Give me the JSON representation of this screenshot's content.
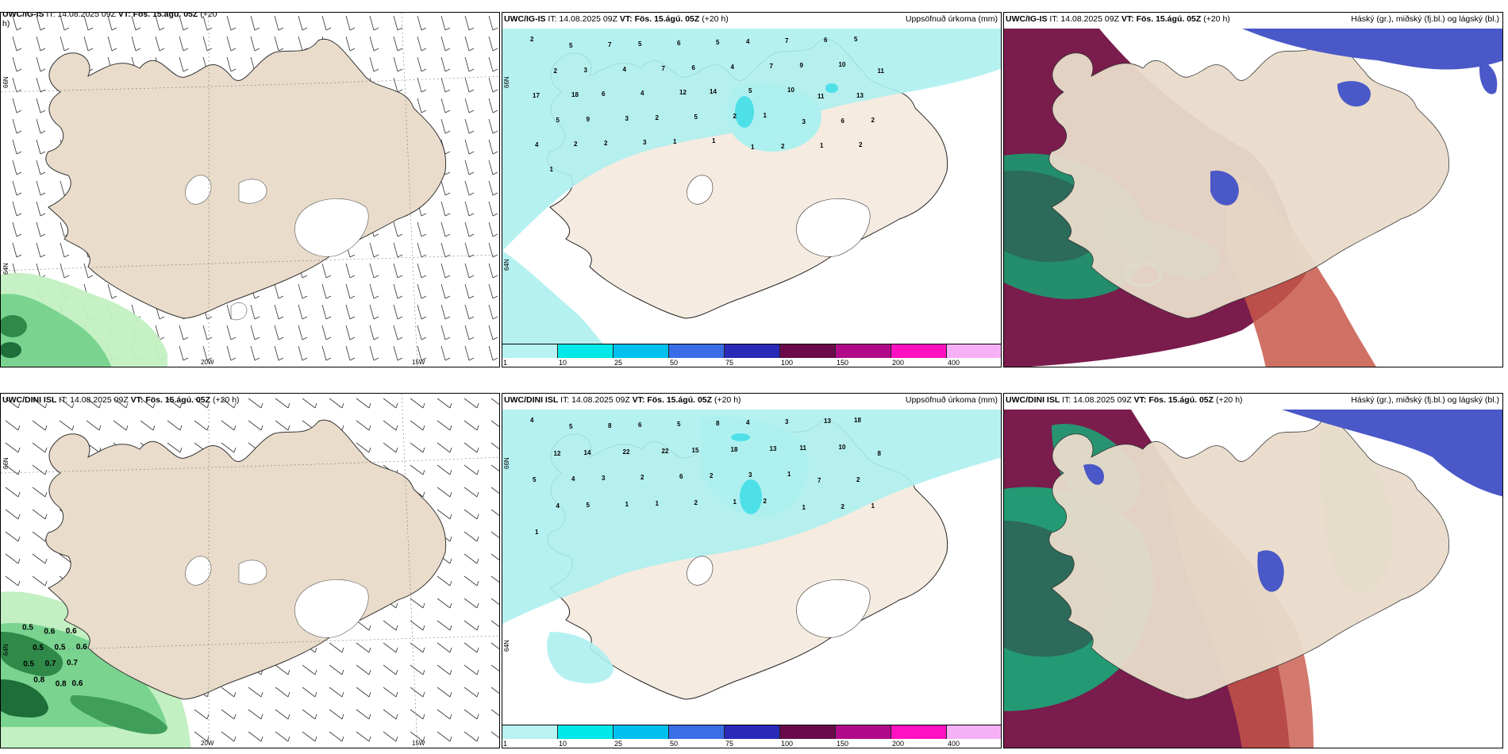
{
  "panels": {
    "tl": {
      "title_model": "UWC/IG-IS",
      "title_it": "IT: 14.08.2025 09Z",
      "title_vt": "VT: Fös. 15.ágú. 05Z",
      "title_lead": "(+20",
      "title_wrap": "h)"
    },
    "tm": {
      "title_model": "UWC/IG-IS",
      "title_it": "IT: 14.08.2025 09Z",
      "title_vt": "VT: Fös. 15.ágú. 05Z",
      "title_lead": "(+20 h)",
      "title_right": "Uppsöfnuð úrkoma (mm)"
    },
    "tr": {
      "title_model": "UWC/IG-IS",
      "title_it": "IT: 14.08.2025 09Z",
      "title_vt": "VT: Fös. 15.ágú. 05Z",
      "title_lead": "(+20 h)",
      "title_right": "Háský (gr.), miðský (fj.bl.) og lágský (bl.)"
    },
    "bl": {
      "title_model": "UWC/DINI ISL",
      "title_it": "IT: 14.08.2025 09Z",
      "title_vt": "VT: Fös. 15.ágú. 05Z",
      "title_lead": "(+20 h)"
    },
    "bm": {
      "title_model": "UWC/DINI ISL",
      "title_it": "IT: 14.08.2025 09Z",
      "title_vt": "VT: Fös. 15.ágú. 05Z",
      "title_lead": "(+20 h)",
      "title_right": "Uppsöfnuð úrkoma (mm)"
    },
    "br": {
      "title_model": "UWC/DINI ISL",
      "title_it": "IT: 14.08.2025 09Z",
      "title_vt": "VT: Fös. 15.ágú. 05Z",
      "title_lead": "(+20 h)",
      "title_right": "Háský (gr.), miðský (fj.bl.) og lágský (bl.)"
    }
  },
  "axis_labels": {
    "lon_20w": "20W",
    "lon_15w": "15W",
    "lat_66n": "66N",
    "lat_64n": "64N"
  },
  "colorbar": {
    "ticks": [
      "1",
      "10",
      "25",
      "50",
      "75",
      "100",
      "150",
      "200",
      "400"
    ],
    "colors": [
      "#b8f2f2",
      "#00e8e8",
      "#00c0f0",
      "#3a6ee8",
      "#2a2ab8",
      "#6a0a4a",
      "#b00a8a",
      "#ff10c0",
      "#f6b0f6"
    ]
  },
  "precip_numbers_top": [
    "2",
    "5",
    "7",
    "5",
    "6",
    "5",
    "4",
    "7",
    "6",
    "5",
    "2",
    "3",
    "4",
    "7",
    "6",
    "4",
    "7",
    "9",
    "10",
    "11",
    "17",
    "18",
    "6",
    "4",
    "12",
    "14",
    "5",
    "10",
    "11",
    "13",
    "5",
    "9",
    "3",
    "2",
    "5",
    "2",
    "1",
    "3",
    "6",
    "2",
    "4",
    "2",
    "2",
    "3",
    "1",
    "1",
    "1",
    "2",
    "1",
    "2",
    "1"
  ],
  "precip_numbers_bottom": [
    "4",
    "5",
    "8",
    "6",
    "5",
    "8",
    "4",
    "3",
    "13",
    "18",
    "12",
    "14",
    "22",
    "22",
    "15",
    "18",
    "13",
    "11",
    "10",
    "8",
    "5",
    "4",
    "3",
    "2",
    "6",
    "2",
    "3",
    "1",
    "7",
    "2",
    "4",
    "5",
    "1",
    "1",
    "2",
    "1",
    "2",
    "1",
    "2",
    "1",
    "1"
  ],
  "snow_values_bottom_left": [
    "0.5",
    "0.6",
    "0.6",
    "0.5",
    "0.5",
    "0.6",
    "0.5",
    "0.7",
    "0.7",
    "0.8",
    "0.8",
    "0.6"
  ],
  "colors": {
    "land": "#e9dccb",
    "land_light": "#f4ece2",
    "precip_light": "#aef0f0",
    "precip_mid": "#4ee0e8",
    "snow_green_light": "#b8ecb8",
    "snow_green_mid": "#5ec87a",
    "snow_green_dark": "#1e6e3a",
    "cloud_high": "#6a1a48",
    "cloud_high_light": "#c0503a",
    "cloud_mid": "#1aa878",
    "cloud_low": "#4a58c8"
  }
}
